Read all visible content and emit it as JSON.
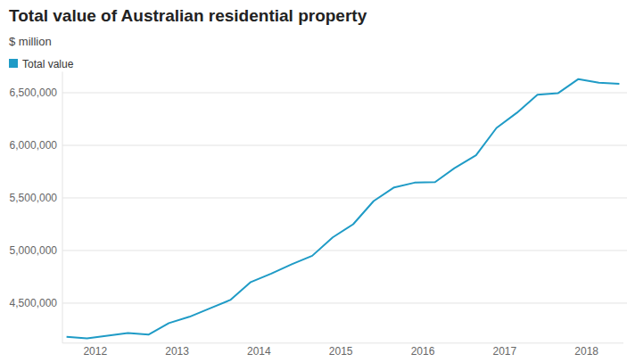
{
  "chart_data": {
    "type": "line",
    "title": "Total value of Australian residential property",
    "subtitle": "$ million",
    "x": [
      2011.65,
      2011.9,
      2012.15,
      2012.4,
      2012.65,
      2012.9,
      2013.15,
      2013.4,
      2013.65,
      2013.9,
      2014.15,
      2014.4,
      2014.65,
      2014.9,
      2015.15,
      2015.4,
      2015.65,
      2015.9,
      2016.15,
      2016.4,
      2016.65,
      2016.9,
      2017.15,
      2017.4,
      2017.65,
      2017.9,
      2018.15,
      2018.4
    ],
    "series": [
      {
        "name": "Total value",
        "color": "#1f9bc6",
        "values": [
          4180000,
          4165000,
          4190000,
          4215000,
          4200000,
          4310000,
          4370000,
          4450000,
          4530000,
          4700000,
          4780000,
          4870000,
          4950000,
          5125000,
          5250000,
          5470000,
          5600000,
          5645000,
          5650000,
          5790000,
          5905000,
          6165000,
          6310000,
          6480000,
          6495000,
          6630000,
          6595000,
          6585000
        ]
      }
    ],
    "xlim": [
      2011.6,
      2018.45
    ],
    "xticks": [
      2012,
      2013,
      2014,
      2015,
      2016,
      2017,
      2018
    ],
    "ylim": [
      4120000,
      6700000
    ],
    "yticks": [
      {
        "value": 4500000,
        "label": "4,500,000"
      },
      {
        "value": 5000000,
        "label": "5,000,000"
      },
      {
        "value": 5500000,
        "label": "5,500,000"
      },
      {
        "value": 6000000,
        "label": "6,000,000"
      },
      {
        "value": 6500000,
        "label": "6,500,000"
      }
    ],
    "grid": true,
    "legend": "top-left"
  }
}
